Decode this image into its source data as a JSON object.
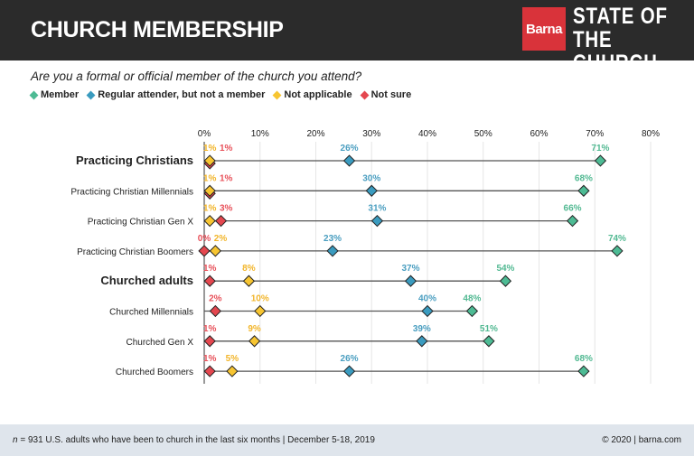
{
  "header": {
    "title": "CHURCH MEMBERSHIP",
    "logo_brand": "Barna",
    "logo_text": [
      "STATE OF",
      "THE CHURCH"
    ]
  },
  "question": "Are you a formal or official member of the church you attend?",
  "footer": {
    "note_n": "n",
    "note": " = 931 U.S. adults who have been to church in the last six months | December 5-18, 2019",
    "credit": "© 2020 | barna.com"
  },
  "chart_data": {
    "type": "dot-plot",
    "xlim": [
      0,
      80
    ],
    "ticks": [
      "0%",
      "10%",
      "20%",
      "30%",
      "40%",
      "50%",
      "60%",
      "70%",
      "80%"
    ],
    "tick_values": [
      0,
      10,
      20,
      30,
      40,
      50,
      60,
      70,
      80
    ],
    "grid": true,
    "legend_placement": "top-left",
    "series": [
      {
        "key": "member",
        "name": "Member",
        "color": "#4dbb94",
        "label_color": "#52b992"
      },
      {
        "key": "attender",
        "name": "Regular attender, but not a member",
        "color": "#3a9bbf",
        "label_color": "#4a9ec0"
      },
      {
        "key": "na",
        "name": "Not applicable",
        "color": "#f7c531",
        "label_color": "#f2b52a"
      },
      {
        "key": "notsure",
        "name": "Not sure",
        "color": "#e4474f",
        "label_color": "#e8515a"
      }
    ],
    "rows": [
      {
        "label": "Practicing Christians",
        "bold": true,
        "member": 71,
        "attender": 26,
        "na": 1,
        "notsure": 1
      },
      {
        "label": "Practicing Christian Millennials",
        "bold": false,
        "member": 68,
        "attender": 30,
        "na": 1,
        "notsure": 1
      },
      {
        "label": "Practicing Christian Gen X",
        "bold": false,
        "member": 66,
        "attender": 31,
        "na": 1,
        "notsure": 3
      },
      {
        "label": "Practicing Christian Boomers",
        "bold": false,
        "member": 74,
        "attender": 23,
        "na": 2,
        "notsure": 0
      },
      {
        "label": "Churched adults",
        "bold": true,
        "member": 54,
        "attender": 37,
        "na": 8,
        "notsure": 1
      },
      {
        "label": "Churched Millennials",
        "bold": false,
        "member": 48,
        "attender": 40,
        "na": 10,
        "notsure": 2
      },
      {
        "label": "Churched Gen X",
        "bold": false,
        "member": 51,
        "attender": 39,
        "na": 9,
        "notsure": 1
      },
      {
        "label": "Churched Boomers",
        "bold": false,
        "member": 68,
        "attender": 26,
        "na": 5,
        "notsure": 1
      }
    ]
  }
}
